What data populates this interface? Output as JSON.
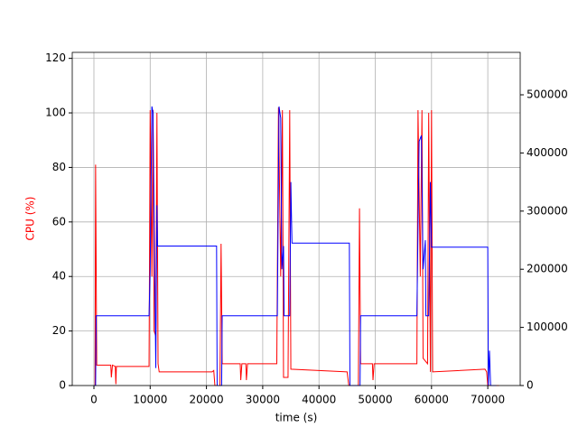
{
  "chart_data": {
    "type": "line",
    "xlabel": "time (s)",
    "ylabel": "CPU (%)",
    "ylabel_color": "#ff0000",
    "grid": true,
    "xlim": [
      -3850,
      75760
    ],
    "xticks": [
      0,
      10000,
      20000,
      30000,
      40000,
      50000,
      60000,
      70000
    ],
    "ylim": [
      0,
      122.2
    ],
    "yticks": [
      0,
      20,
      40,
      60,
      80,
      100,
      120
    ],
    "y2lim": [
      0,
      573000
    ],
    "y2ticks": [
      0,
      100000,
      200000,
      300000,
      400000,
      500000
    ],
    "series": [
      {
        "color": "#ff0000",
        "x": [
          200,
          300,
          500,
          3000,
          3100,
          3300,
          3800,
          3900,
          4000,
          9800,
          10000,
          10300,
          10500,
          10700,
          11000,
          11200,
          11400,
          11600,
          21000,
          21300,
          21500,
          22400,
          22600,
          22800,
          26000,
          26100,
          26300,
          27000,
          27100,
          27300,
          32500,
          32800,
          33200,
          33500,
          33700,
          34500,
          34800,
          35000,
          45000,
          45300,
          47000,
          47200,
          47400,
          49500,
          49600,
          49800,
          57400,
          57600,
          58000,
          58300,
          58500,
          59300,
          59500,
          59800,
          60000,
          60200,
          69500,
          69800,
          70000,
          72000
        ],
        "values": [
          0,
          81,
          7.5,
          7.5,
          3,
          7.5,
          7,
          0.5,
          7,
          7,
          101,
          40,
          101,
          20,
          18,
          100,
          8,
          5,
          5,
          5.5,
          0,
          0,
          52,
          8,
          8,
          2,
          8,
          8,
          2,
          8,
          8,
          102,
          40,
          101,
          3,
          3,
          101,
          6,
          5,
          0,
          0,
          65,
          8,
          8,
          2,
          8,
          8,
          101,
          40,
          101,
          10,
          8,
          100,
          5,
          101,
          5,
          6,
          5,
          0,
          0
        ]
      },
      {
        "color": "#0000ff",
        "axis": "y2",
        "x": [
          0,
          300,
          400,
          9800,
          10000,
          10300,
          10500,
          10800,
          11000,
          11200,
          11300,
          21800,
          21900,
          22700,
          22800,
          32600,
          32900,
          33200,
          33400,
          33700,
          33800,
          34800,
          35000,
          35200,
          45400,
          45500,
          47300,
          47400,
          57400,
          57800,
          58200,
          58500,
          58900,
          59000,
          59500,
          59800,
          60000,
          70000,
          70100,
          70300,
          70500,
          71500
        ],
        "values": [
          0,
          0,
          120000,
          120000,
          200000,
          480000,
          470000,
          200000,
          30000,
          310000,
          240000,
          240000,
          0,
          0,
          120000,
          120000,
          480000,
          460000,
          200000,
          240000,
          120000,
          120000,
          350000,
          245000,
          245000,
          0,
          0,
          120000,
          120000,
          420000,
          430000,
          200000,
          250000,
          120000,
          120000,
          350000,
          238000,
          238000,
          0,
          60000,
          0,
          0
        ]
      }
    ]
  }
}
